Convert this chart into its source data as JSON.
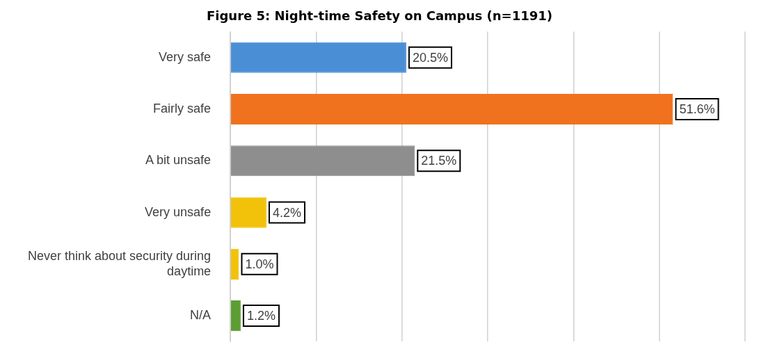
{
  "chart_data": {
    "type": "bar",
    "orientation": "horizontal",
    "title": "Figure 5: Night-time Safety on Campus (n=1191)",
    "categories": [
      "Very safe",
      "Fairly safe",
      "A bit unsafe",
      "Very unsafe",
      "Never think about security during daytime",
      "N/A"
    ],
    "values": [
      20.5,
      51.6,
      21.5,
      4.2,
      1.0,
      1.2
    ],
    "colors": [
      "#4a8fd6",
      "#f0721e",
      "#8e8e8e",
      "#f2c10a",
      "#f2c10a",
      "#5c9e33"
    ],
    "value_labels": [
      "20.5%",
      "51.6%",
      "21.5%",
      "4.2%",
      "1.0%",
      "1.2%"
    ],
    "xlim": [
      0,
      60
    ],
    "xticks": [
      {
        "value": 0,
        "label": null
      },
      {
        "value": 10,
        "label": null
      },
      {
        "value": 20,
        "label": null
      },
      {
        "value": 30,
        "label": null
      },
      {
        "value": 40,
        "label": null
      },
      {
        "value": 50,
        "label": null
      },
      {
        "value": 60,
        "label": null
      }
    ],
    "grid": "x",
    "tick_labels": "y",
    "legend": false
  }
}
